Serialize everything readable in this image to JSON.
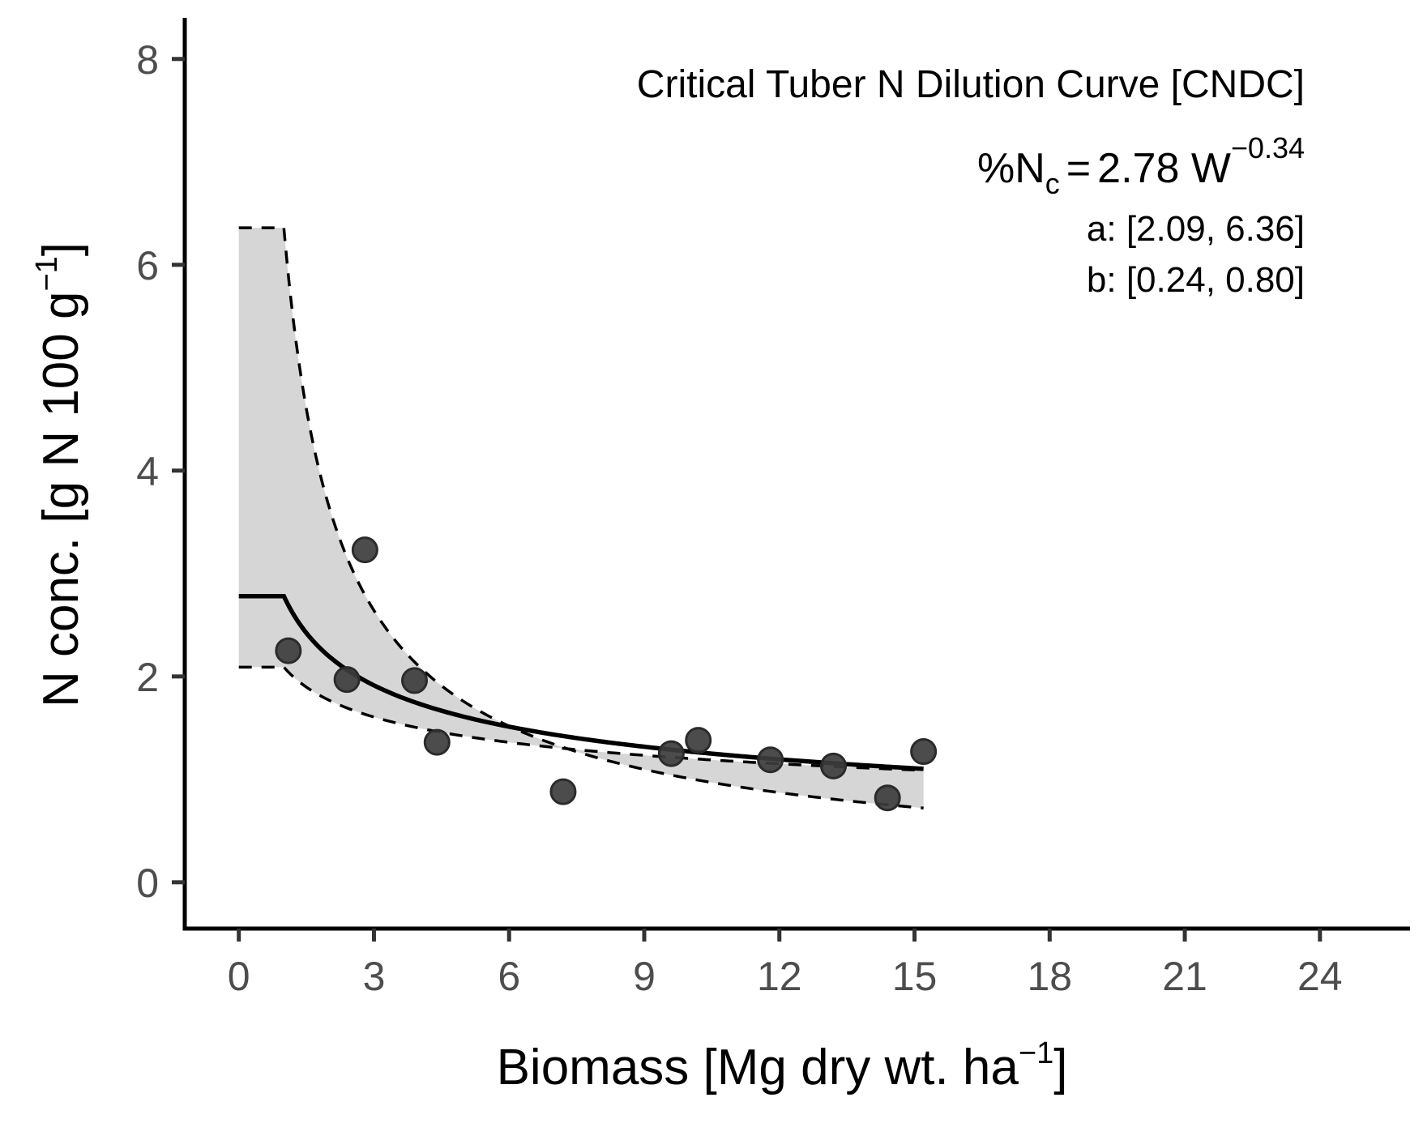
{
  "chart_data": {
    "type": "scatter",
    "title": "",
    "xlabel": {
      "main": "Biomass [Mg dry wt. ha",
      "sup": "−1",
      "tail": "]"
    },
    "ylabel": {
      "main": "N conc. [g N 100 g",
      "sup": "−1",
      "tail": "]"
    },
    "xlim": [
      -1.2,
      26
    ],
    "ylim": [
      -0.45,
      8.4
    ],
    "x_ticks": [
      0,
      3,
      6,
      9,
      12,
      15,
      18,
      21,
      24
    ],
    "x_tick_labels": [
      "0",
      "3",
      "6",
      "9",
      "12",
      "15",
      "18",
      "21",
      "24"
    ],
    "y_ticks": [
      0,
      2,
      4,
      6,
      8
    ],
    "y_tick_labels": [
      "0",
      "2",
      "4",
      "6",
      "8"
    ],
    "grid": false,
    "legend": "none",
    "annotations": {
      "curve_title": "Critical Tuber N Dilution Curve [CNDC]",
      "equation": {
        "pct": "%N",
        "sub": "c",
        "eq": "=",
        "rhs": "2.78 W",
        "sup": "−0.34"
      },
      "ci_a": "a: [2.09, 6.36]",
      "ci_b": "b: [0.24, 0.80]"
    },
    "model": {
      "a": 2.78,
      "b": 0.34,
      "a_lower": 2.09,
      "a_upper": 6.36,
      "b_lower": 0.24,
      "b_upper": 0.8,
      "breakpoint": 1.0,
      "x_max": 15.2
    },
    "series": [
      {
        "type": "scatter",
        "x": [
          1.1,
          2.4,
          2.8,
          3.9,
          4.4,
          7.2,
          9.6,
          10.2,
          11.8,
          13.2,
          14.4,
          15.2
        ],
        "y": [
          2.25,
          1.97,
          3.23,
          1.96,
          1.36,
          0.88,
          1.25,
          1.38,
          1.19,
          1.13,
          0.82,
          1.27
        ]
      }
    ],
    "colors": {
      "points": "#3d3d3d",
      "point_edge": "#2b2b2b",
      "band": "#d6d6d6",
      "line": "#000000",
      "axis": "#000000",
      "tick": "#333333"
    }
  }
}
